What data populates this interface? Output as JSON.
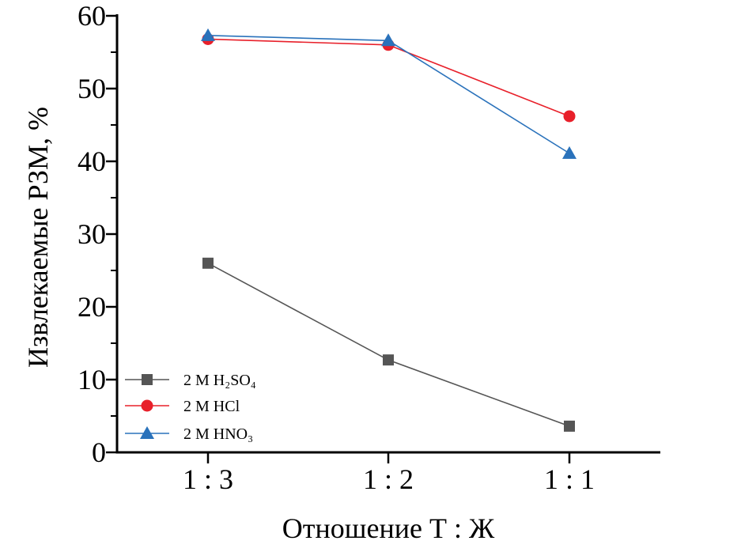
{
  "chart_data": {
    "type": "line",
    "title": "",
    "xlabel": "Отношение Т : Ж",
    "ylabel": "Извлекаемые РЗМ, %",
    "categories": [
      "1 : 3",
      "1 : 2",
      "1 : 1"
    ],
    "ylim": [
      0,
      60
    ],
    "yticks": [
      0,
      10,
      20,
      30,
      40,
      50,
      60
    ],
    "yminor_step": 5,
    "grid": false,
    "legend_position": "bottom-left",
    "series": [
      {
        "name": "2 M H₂SO₄",
        "values": [
          26.0,
          12.7,
          3.6
        ],
        "color": "#555555",
        "marker": "square"
      },
      {
        "name": "2 M HCl",
        "values": [
          56.8,
          56.0,
          46.2
        ],
        "color": "#e8202a",
        "marker": "circle"
      },
      {
        "name": "2 M HNO₃",
        "values": [
          57.3,
          56.6,
          41.1
        ],
        "color": "#2a72bb",
        "marker": "triangle"
      }
    ]
  }
}
